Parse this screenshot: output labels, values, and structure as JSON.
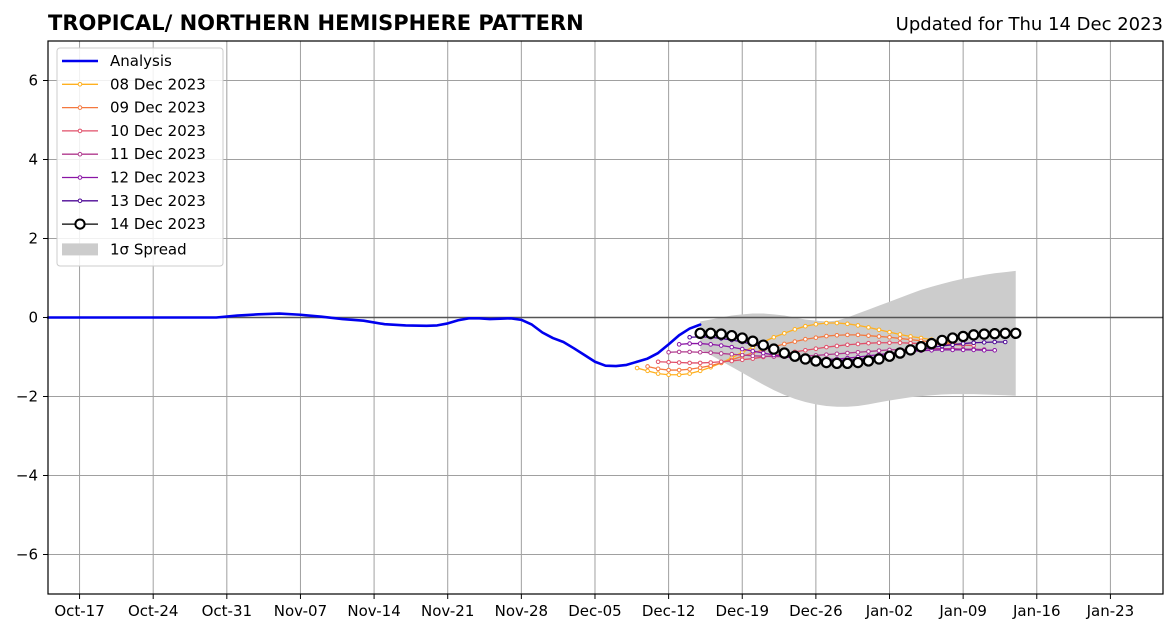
{
  "chart_data": {
    "type": "line",
    "title": "TROPICAL/ NORTHERN HEMISPHERE PATTERN",
    "subtitle": "Updated for Thu 14 Dec 2023",
    "xlabel": "",
    "ylabel": "",
    "x_type": "date",
    "xlim": [
      "2023-10-14",
      "2024-01-28"
    ],
    "ylim": [
      -7,
      7
    ],
    "xticks": [
      {
        "date": "2023-10-17",
        "label": "Oct-17"
      },
      {
        "date": "2023-10-24",
        "label": "Oct-24"
      },
      {
        "date": "2023-10-31",
        "label": "Oct-31"
      },
      {
        "date": "2023-11-07",
        "label": "Nov-07"
      },
      {
        "date": "2023-11-14",
        "label": "Nov-14"
      },
      {
        "date": "2023-11-21",
        "label": "Nov-21"
      },
      {
        "date": "2023-11-28",
        "label": "Nov-28"
      },
      {
        "date": "2023-12-05",
        "label": "Dec-05"
      },
      {
        "date": "2023-12-12",
        "label": "Dec-12"
      },
      {
        "date": "2023-12-19",
        "label": "Dec-19"
      },
      {
        "date": "2023-12-26",
        "label": "Dec-26"
      },
      {
        "date": "2024-01-02",
        "label": "Jan-02"
      },
      {
        "date": "2024-01-09",
        "label": "Jan-09"
      },
      {
        "date": "2024-01-16",
        "label": "Jan-16"
      },
      {
        "date": "2024-01-23",
        "label": "Jan-23"
      }
    ],
    "yticks": [
      {
        "value": -6,
        "label": "−6"
      },
      {
        "value": -4,
        "label": "−4"
      },
      {
        "value": -2,
        "label": "−2"
      },
      {
        "value": 0,
        "label": "0"
      },
      {
        "value": 2,
        "label": "2"
      },
      {
        "value": 4,
        "label": "4"
      },
      {
        "value": 6,
        "label": "6"
      }
    ],
    "grid": true,
    "legend_position": "top-left",
    "analysis": {
      "name": "Analysis",
      "color": "#0000ee",
      "points": [
        [
          "2023-10-14",
          0.0
        ],
        [
          "2023-10-22",
          0.0
        ],
        [
          "2023-10-30",
          0.0
        ],
        [
          "2023-11-01",
          0.05
        ],
        [
          "2023-11-03",
          0.08
        ],
        [
          "2023-11-05",
          0.1
        ],
        [
          "2023-11-07",
          0.07
        ],
        [
          "2023-11-09",
          0.02
        ],
        [
          "2023-11-11",
          -0.04
        ],
        [
          "2023-11-13",
          -0.08
        ],
        [
          "2023-11-15",
          -0.17
        ],
        [
          "2023-11-17",
          -0.2
        ],
        [
          "2023-11-19",
          -0.21
        ],
        [
          "2023-11-20",
          -0.2
        ],
        [
          "2023-11-21",
          -0.15
        ],
        [
          "2023-11-22",
          -0.07
        ],
        [
          "2023-11-23",
          -0.02
        ],
        [
          "2023-11-24",
          -0.02
        ],
        [
          "2023-11-25",
          -0.04
        ],
        [
          "2023-11-26",
          -0.03
        ],
        [
          "2023-11-27",
          -0.02
        ],
        [
          "2023-11-28",
          -0.06
        ],
        [
          "2023-11-29",
          -0.18
        ],
        [
          "2023-11-30",
          -0.38
        ],
        [
          "2023-12-01",
          -0.52
        ],
        [
          "2023-12-02",
          -0.62
        ],
        [
          "2023-12-03",
          -0.78
        ],
        [
          "2023-12-04",
          -0.95
        ],
        [
          "2023-12-05",
          -1.12
        ],
        [
          "2023-12-06",
          -1.22
        ],
        [
          "2023-12-07",
          -1.23
        ],
        [
          "2023-12-08",
          -1.2
        ],
        [
          "2023-12-09",
          -1.12
        ],
        [
          "2023-12-10",
          -1.04
        ],
        [
          "2023-12-11",
          -0.9
        ],
        [
          "2023-12-12",
          -0.68
        ],
        [
          "2023-12-13",
          -0.45
        ],
        [
          "2023-12-14",
          -0.28
        ],
        [
          "2023-12-15",
          -0.18
        ]
      ]
    },
    "forecasts": [
      {
        "name": "08 Dec 2023",
        "color": "#ffb01f",
        "start": "2023-12-09",
        "values": [
          -1.28,
          -1.35,
          -1.42,
          -1.45,
          -1.45,
          -1.42,
          -1.35,
          -1.26,
          -1.15,
          -1.02,
          -0.88,
          -0.75,
          -0.62,
          -0.5,
          -0.4,
          -0.3,
          -0.22,
          -0.17,
          -0.14,
          -0.14,
          -0.16,
          -0.2,
          -0.25,
          -0.31,
          -0.37,
          -0.43,
          -0.48,
          -0.52,
          -0.56,
          -0.6,
          -0.63
        ]
      },
      {
        "name": "09 Dec 2023",
        "color": "#f4783f",
        "start": "2023-12-10",
        "values": [
          -1.24,
          -1.3,
          -1.33,
          -1.33,
          -1.31,
          -1.27,
          -1.22,
          -1.15,
          -1.07,
          -0.98,
          -0.9,
          -0.82,
          -0.74,
          -0.67,
          -0.61,
          -0.55,
          -0.51,
          -0.47,
          -0.45,
          -0.44,
          -0.44,
          -0.46,
          -0.48,
          -0.5,
          -0.53,
          -0.56,
          -0.59,
          -0.62,
          -0.64,
          -0.66,
          -0.68
        ]
      },
      {
        "name": "10 Dec 2023",
        "color": "#e04f69",
        "start": "2023-12-11",
        "values": [
          -1.12,
          -1.13,
          -1.14,
          -1.15,
          -1.15,
          -1.14,
          -1.12,
          -1.1,
          -1.07,
          -1.04,
          -1.0,
          -0.96,
          -0.92,
          -0.87,
          -0.83,
          -0.79,
          -0.75,
          -0.72,
          -0.69,
          -0.67,
          -0.65,
          -0.64,
          -0.64,
          -0.64,
          -0.65,
          -0.66,
          -0.67,
          -0.68,
          -0.69,
          -0.7,
          -0.71
        ]
      },
      {
        "name": "11 Dec 2023",
        "color": "#b03a8e",
        "start": "2023-12-12",
        "values": [
          -0.88,
          -0.87,
          -0.87,
          -0.88,
          -0.89,
          -0.91,
          -0.93,
          -0.95,
          -0.97,
          -0.98,
          -0.99,
          -0.99,
          -0.98,
          -0.97,
          -0.96,
          -0.94,
          -0.92,
          -0.9,
          -0.88,
          -0.86,
          -0.84,
          -0.82,
          -0.81,
          -0.8,
          -0.79,
          -0.79,
          -0.79,
          -0.79,
          -0.8,
          -0.8,
          -0.81
        ]
      },
      {
        "name": "12 Dec 2023",
        "color": "#8a15a5",
        "start": "2023-12-13",
        "values": [
          -0.68,
          -0.66,
          -0.66,
          -0.68,
          -0.71,
          -0.75,
          -0.8,
          -0.85,
          -0.9,
          -0.95,
          -0.99,
          -1.03,
          -1.05,
          -1.06,
          -1.06,
          -1.05,
          -1.03,
          -1.0,
          -0.97,
          -0.94,
          -0.91,
          -0.88,
          -0.86,
          -0.84,
          -0.83,
          -0.82,
          -0.82,
          -0.82,
          -0.82,
          -0.83,
          -0.83
        ]
      },
      {
        "name": "13 Dec 2023",
        "color": "#4d0896",
        "start": "2023-12-14",
        "values": [
          -0.5,
          -0.49,
          -0.5,
          -0.53,
          -0.57,
          -0.62,
          -0.68,
          -0.75,
          -0.82,
          -0.89,
          -0.95,
          -1.01,
          -1.05,
          -1.08,
          -1.09,
          -1.08,
          -1.06,
          -1.03,
          -0.99,
          -0.95,
          -0.9,
          -0.85,
          -0.8,
          -0.76,
          -0.72,
          -0.69,
          -0.66,
          -0.64,
          -0.63,
          -0.62,
          -0.62
        ]
      },
      {
        "name": "14 Dec 2023",
        "color": "#000000",
        "start": "2023-12-15",
        "values": [
          -0.4,
          -0.4,
          -0.42,
          -0.46,
          -0.52,
          -0.6,
          -0.7,
          -0.8,
          -0.9,
          -0.98,
          -1.05,
          -1.1,
          -1.14,
          -1.16,
          -1.16,
          -1.14,
          -1.1,
          -1.05,
          -0.98,
          -0.9,
          -0.82,
          -0.74,
          -0.66,
          -0.58,
          -0.52,
          -0.48,
          -0.44,
          -0.42,
          -0.41,
          -0.4,
          -0.4
        ]
      }
    ],
    "spread": {
      "name": "1σ Spread",
      "color": "#cccccc",
      "start": "2023-12-15",
      "upper": [
        -0.1,
        -0.05,
        0.0,
        0.05,
        0.08,
        0.1,
        0.1,
        0.08,
        0.05,
        0.0,
        -0.05,
        -0.08,
        -0.1,
        -0.08,
        0.0,
        0.1,
        0.2,
        0.3,
        0.4,
        0.5,
        0.6,
        0.7,
        0.78,
        0.85,
        0.92,
        0.98,
        1.03,
        1.08,
        1.12,
        1.15,
        1.18
      ],
      "lower": [
        -0.8,
        -0.95,
        -1.1,
        -1.25,
        -1.4,
        -1.55,
        -1.7,
        -1.84,
        -1.96,
        -2.06,
        -2.14,
        -2.2,
        -2.24,
        -2.26,
        -2.26,
        -2.24,
        -2.2,
        -2.15,
        -2.1,
        -2.06,
        -2.02,
        -1.99,
        -1.97,
        -1.95,
        -1.94,
        -1.94,
        -1.94,
        -1.95,
        -1.96,
        -1.97,
        -1.98
      ]
    }
  }
}
